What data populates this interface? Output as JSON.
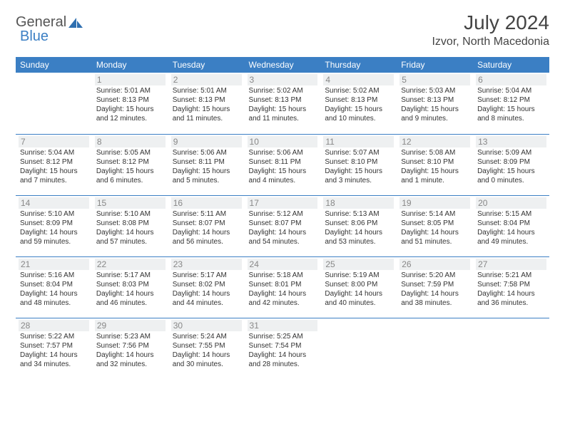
{
  "brand": {
    "part1": "General",
    "part2": "Blue"
  },
  "title": "July 2024",
  "location": "Izvor, North Macedonia",
  "colors": {
    "header_bg": "#3b7fc4",
    "header_text": "#ffffff",
    "daynum_bg": "#eef0f1",
    "daynum_text": "#888888",
    "border": "#3b7fc4",
    "text": "#333333"
  },
  "weekdays": [
    "Sunday",
    "Monday",
    "Tuesday",
    "Wednesday",
    "Thursday",
    "Friday",
    "Saturday"
  ],
  "weeks": [
    [
      null,
      {
        "n": "1",
        "sr": "5:01 AM",
        "ss": "8:13 PM",
        "dl": "15 hours and 12 minutes."
      },
      {
        "n": "2",
        "sr": "5:01 AM",
        "ss": "8:13 PM",
        "dl": "15 hours and 11 minutes."
      },
      {
        "n": "3",
        "sr": "5:02 AM",
        "ss": "8:13 PM",
        "dl": "15 hours and 11 minutes."
      },
      {
        "n": "4",
        "sr": "5:02 AM",
        "ss": "8:13 PM",
        "dl": "15 hours and 10 minutes."
      },
      {
        "n": "5",
        "sr": "5:03 AM",
        "ss": "8:13 PM",
        "dl": "15 hours and 9 minutes."
      },
      {
        "n": "6",
        "sr": "5:04 AM",
        "ss": "8:12 PM",
        "dl": "15 hours and 8 minutes."
      }
    ],
    [
      {
        "n": "7",
        "sr": "5:04 AM",
        "ss": "8:12 PM",
        "dl": "15 hours and 7 minutes."
      },
      {
        "n": "8",
        "sr": "5:05 AM",
        "ss": "8:12 PM",
        "dl": "15 hours and 6 minutes."
      },
      {
        "n": "9",
        "sr": "5:06 AM",
        "ss": "8:11 PM",
        "dl": "15 hours and 5 minutes."
      },
      {
        "n": "10",
        "sr": "5:06 AM",
        "ss": "8:11 PM",
        "dl": "15 hours and 4 minutes."
      },
      {
        "n": "11",
        "sr": "5:07 AM",
        "ss": "8:10 PM",
        "dl": "15 hours and 3 minutes."
      },
      {
        "n": "12",
        "sr": "5:08 AM",
        "ss": "8:10 PM",
        "dl": "15 hours and 1 minute."
      },
      {
        "n": "13",
        "sr": "5:09 AM",
        "ss": "8:09 PM",
        "dl": "15 hours and 0 minutes."
      }
    ],
    [
      {
        "n": "14",
        "sr": "5:10 AM",
        "ss": "8:09 PM",
        "dl": "14 hours and 59 minutes."
      },
      {
        "n": "15",
        "sr": "5:10 AM",
        "ss": "8:08 PM",
        "dl": "14 hours and 57 minutes."
      },
      {
        "n": "16",
        "sr": "5:11 AM",
        "ss": "8:07 PM",
        "dl": "14 hours and 56 minutes."
      },
      {
        "n": "17",
        "sr": "5:12 AM",
        "ss": "8:07 PM",
        "dl": "14 hours and 54 minutes."
      },
      {
        "n": "18",
        "sr": "5:13 AM",
        "ss": "8:06 PM",
        "dl": "14 hours and 53 minutes."
      },
      {
        "n": "19",
        "sr": "5:14 AM",
        "ss": "8:05 PM",
        "dl": "14 hours and 51 minutes."
      },
      {
        "n": "20",
        "sr": "5:15 AM",
        "ss": "8:04 PM",
        "dl": "14 hours and 49 minutes."
      }
    ],
    [
      {
        "n": "21",
        "sr": "5:16 AM",
        "ss": "8:04 PM",
        "dl": "14 hours and 48 minutes."
      },
      {
        "n": "22",
        "sr": "5:17 AM",
        "ss": "8:03 PM",
        "dl": "14 hours and 46 minutes."
      },
      {
        "n": "23",
        "sr": "5:17 AM",
        "ss": "8:02 PM",
        "dl": "14 hours and 44 minutes."
      },
      {
        "n": "24",
        "sr": "5:18 AM",
        "ss": "8:01 PM",
        "dl": "14 hours and 42 minutes."
      },
      {
        "n": "25",
        "sr": "5:19 AM",
        "ss": "8:00 PM",
        "dl": "14 hours and 40 minutes."
      },
      {
        "n": "26",
        "sr": "5:20 AM",
        "ss": "7:59 PM",
        "dl": "14 hours and 38 minutes."
      },
      {
        "n": "27",
        "sr": "5:21 AM",
        "ss": "7:58 PM",
        "dl": "14 hours and 36 minutes."
      }
    ],
    [
      {
        "n": "28",
        "sr": "5:22 AM",
        "ss": "7:57 PM",
        "dl": "14 hours and 34 minutes."
      },
      {
        "n": "29",
        "sr": "5:23 AM",
        "ss": "7:56 PM",
        "dl": "14 hours and 32 minutes."
      },
      {
        "n": "30",
        "sr": "5:24 AM",
        "ss": "7:55 PM",
        "dl": "14 hours and 30 minutes."
      },
      {
        "n": "31",
        "sr": "5:25 AM",
        "ss": "7:54 PM",
        "dl": "14 hours and 28 minutes."
      },
      null,
      null,
      null
    ]
  ],
  "labels": {
    "sunrise": "Sunrise:",
    "sunset": "Sunset:",
    "daylight": "Daylight:"
  }
}
